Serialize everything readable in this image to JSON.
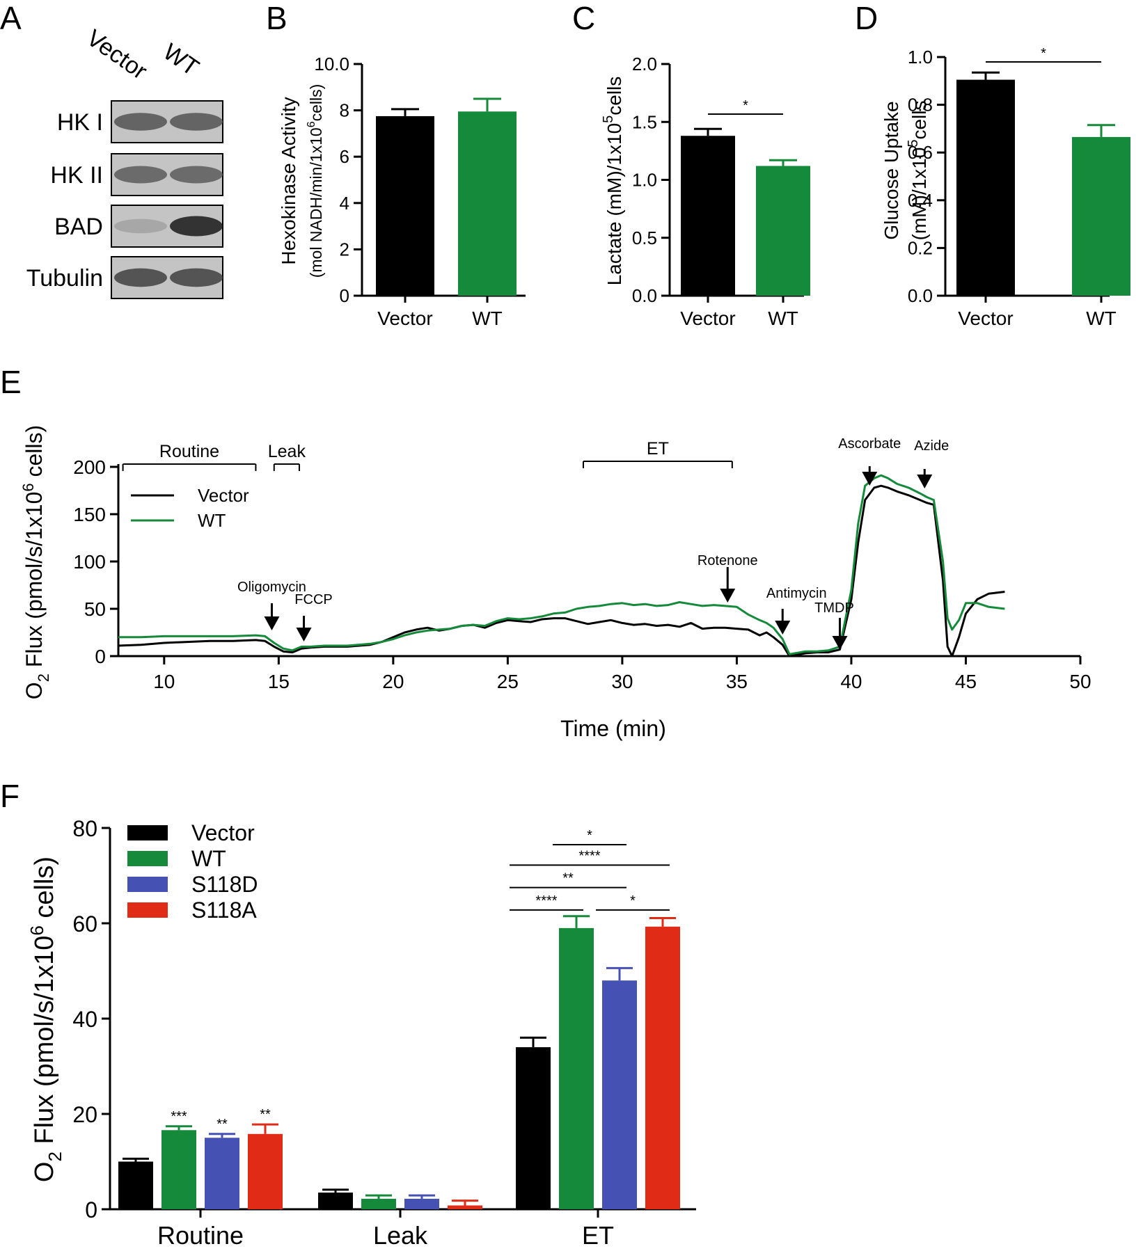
{
  "colors": {
    "vector": "#000000",
    "wt": "#148a3a",
    "s118d": "#4651b4",
    "s118a": "#e02b17"
  },
  "panelA": {
    "letter": "A",
    "lanes": [
      "Vector",
      "WT"
    ],
    "bands": [
      {
        "label": "HK I",
        "intensity": [
          0.62,
          0.62
        ]
      },
      {
        "label": "HK II",
        "intensity": [
          0.58,
          0.58
        ]
      },
      {
        "label": "BAD",
        "intensity": [
          0.22,
          0.92
        ]
      },
      {
        "label": "Tubulin",
        "intensity": [
          0.72,
          0.72
        ]
      }
    ]
  },
  "panelB": {
    "letter": "B",
    "chart_data": {
      "type": "bar",
      "categories": [
        "Vector",
        "WT"
      ],
      "values": [
        7.75,
        7.95
      ],
      "errors": [
        0.3,
        0.55
      ],
      "ylim": [
        0,
        10
      ],
      "yticks": [
        "0",
        "2",
        "4",
        "6",
        "8",
        "10.0"
      ],
      "ylabel_line1": "Hexokinase Activity",
      "ylabel_line2": "(mol NADH/min/1x10",
      "ylabel_sup": "6",
      "ylabel_tail": "cells)",
      "significance": []
    }
  },
  "panelC": {
    "letter": "C",
    "chart_data": {
      "type": "bar",
      "categories": [
        "Vector",
        "WT"
      ],
      "values": [
        1.38,
        1.12
      ],
      "errors": [
        0.06,
        0.05
      ],
      "ylim": [
        0,
        2
      ],
      "yticks": [
        "0.0",
        "0.5",
        "1.0",
        "1.5",
        "2.0"
      ],
      "ylabel": "Lactate (mM)/1x10",
      "ylabel_sup": "5",
      "ylabel_tail": "cells",
      "significance": [
        {
          "from": 0,
          "to": 1,
          "label": "*"
        }
      ]
    }
  },
  "panelD": {
    "letter": "D",
    "chart_data": {
      "type": "bar",
      "categories": [
        "Vector",
        "WT"
      ],
      "values": [
        0.905,
        0.665
      ],
      "errors": [
        0.03,
        0.05
      ],
      "ylim": [
        0,
        1
      ],
      "yticks": [
        "0.0",
        "0.2",
        "0.4",
        "0.6",
        "0.8",
        "1.0"
      ],
      "ylabel_line1": "Glucose Uptake",
      "ylabel_line2": "(mM)/1x10",
      "ylabel_sup": "5",
      "ylabel_tail": "cells",
      "significance": [
        {
          "from": 0,
          "to": 1,
          "label": "*"
        }
      ]
    }
  },
  "panelE": {
    "letter": "E",
    "chart_data": {
      "type": "line",
      "title": "",
      "xlabel": "Time (min)",
      "ylabel_pre": "O",
      "ylabel_sub": "2",
      "ylabel_mid": " Flux (pmol/s/1x10",
      "ylabel_sup": "6",
      "ylabel_tail": " cells)",
      "xlim": [
        8,
        50
      ],
      "ylim": [
        0,
        200
      ],
      "xticks": [
        10,
        15,
        20,
        25,
        30,
        35,
        40,
        45,
        50
      ],
      "yticks": [
        0,
        50,
        100,
        150,
        200
      ],
      "legend": [
        "Vector",
        "WT"
      ],
      "series": [
        {
          "name": "Vector",
          "x": [
            8,
            9,
            10,
            11,
            12,
            13,
            14,
            14.4,
            14.8,
            15.2,
            15.6,
            16,
            16.4,
            17,
            18,
            19,
            19.5,
            20,
            20.5,
            21,
            21.5,
            22,
            22.5,
            23,
            23.5,
            24,
            24.5,
            25,
            25.5,
            26,
            26.5,
            27,
            27.5,
            28,
            28.5,
            29,
            29.5,
            30,
            30.5,
            31,
            31.5,
            32,
            32.5,
            33,
            33.5,
            34,
            34.5,
            35,
            35.5,
            36,
            36.3,
            36.6,
            37,
            37.3,
            38,
            38.5,
            39,
            39.5,
            40,
            40.3,
            40.6,
            41,
            41.3,
            41.6,
            42,
            42.5,
            43,
            43.3,
            43.6,
            44,
            44.2,
            44.4,
            44.7,
            45,
            45.5,
            46,
            46.7
          ],
          "y": [
            11,
            12,
            14,
            15,
            16,
            16,
            17,
            16,
            10,
            5,
            4,
            8,
            9,
            10,
            10,
            12,
            15,
            20,
            25,
            28,
            30,
            27,
            29,
            32,
            33,
            30,
            35,
            38,
            37,
            36,
            39,
            40,
            40,
            37,
            34,
            36,
            38,
            35,
            33,
            34,
            32,
            33,
            31,
            35,
            29,
            30,
            30,
            29,
            28,
            22,
            25,
            20,
            12,
            0,
            3,
            4,
            4,
            7,
            60,
            120,
            165,
            178,
            180,
            178,
            174,
            170,
            165,
            162,
            160,
            80,
            10,
            0,
            20,
            45,
            60,
            66,
            68
          ]
        },
        {
          "name": "WT",
          "x": [
            8,
            9,
            10,
            11,
            12,
            13,
            14,
            14.4,
            14.8,
            15.2,
            15.6,
            16,
            16.4,
            17,
            18,
            19,
            19.5,
            20,
            20.5,
            21,
            21.5,
            22,
            22.5,
            23,
            23.5,
            24,
            24.5,
            25,
            25.5,
            26,
            26.5,
            27,
            27.5,
            28,
            28.5,
            29,
            29.5,
            30,
            30.5,
            31,
            31.5,
            32,
            32.5,
            33,
            33.5,
            34,
            34.5,
            35,
            35.5,
            36,
            36.3,
            36.6,
            37,
            37.3,
            38,
            38.5,
            39,
            39.5,
            40,
            40.3,
            40.6,
            41,
            41.3,
            41.6,
            42,
            42.5,
            43,
            43.3,
            43.6,
            44,
            44.2,
            44.4,
            44.7,
            45,
            45.5,
            46,
            46.7
          ],
          "y": [
            20,
            20,
            21,
            21,
            21,
            21,
            22,
            21,
            14,
            8,
            6,
            10,
            10,
            11,
            11,
            13,
            15,
            18,
            22,
            25,
            27,
            28,
            29,
            32,
            33,
            32,
            37,
            40,
            39,
            40,
            42,
            45,
            46,
            50,
            52,
            53,
            55,
            56,
            54,
            55,
            53,
            54,
            57,
            55,
            53,
            54,
            53,
            52,
            44,
            38,
            35,
            30,
            18,
            2,
            5,
            5,
            6,
            10,
            70,
            140,
            180,
            188,
            191,
            188,
            182,
            178,
            172,
            168,
            165,
            100,
            40,
            28,
            38,
            56,
            56,
            52,
            50
          ]
        }
      ],
      "brackets": [
        {
          "label": "Routine",
          "from": 8.2,
          "to": 14.0
        },
        {
          "label": "Leak",
          "from": 14.8,
          "to": 15.9
        },
        {
          "label": "ET",
          "from": 28.3,
          "to": 34.8
        }
      ],
      "injections": [
        {
          "label": "Oligomycin",
          "x": 14.7
        },
        {
          "label": "FCCP",
          "x": 16.1
        },
        {
          "label": "Rotenone",
          "x": 34.6
        },
        {
          "label": "Antimycin",
          "x": 37.0
        },
        {
          "label": "TMDP",
          "x": 39.5
        },
        {
          "label": "Ascorbate",
          "x": 40.8
        },
        {
          "label": "Azide",
          "x": 43.2
        }
      ]
    }
  },
  "panelF": {
    "letter": "F",
    "chart_data": {
      "type": "bar",
      "categories": [
        "Routine",
        "Leak",
        "ET"
      ],
      "ylim": [
        0,
        80
      ],
      "yticks": [
        0,
        20,
        40,
        60,
        80
      ],
      "ylabel_pre": "O",
      "ylabel_sub": "2",
      "ylabel_mid": " Flux (pmol/s/1x10",
      "ylabel_sup": "6",
      "ylabel_tail": " cells)",
      "series": [
        {
          "name": "Vector",
          "values": [
            10.0,
            3.5,
            34.0
          ],
          "errors": [
            0.6,
            0.6,
            2.0
          ]
        },
        {
          "name": "WT",
          "values": [
            16.6,
            2.2,
            59.0
          ],
          "errors": [
            0.8,
            0.7,
            2.5
          ]
        },
        {
          "name": "S118D",
          "values": [
            15.0,
            2.2,
            48.0
          ],
          "errors": [
            0.8,
            0.7,
            2.6
          ]
        },
        {
          "name": "S118A",
          "values": [
            15.8,
            0.8,
            59.3
          ],
          "errors": [
            2.0,
            1.0,
            1.8
          ]
        }
      ],
      "bar_stars": [
        {
          "group": 0,
          "series": 1,
          "label": "***"
        },
        {
          "group": 0,
          "series": 2,
          "label": "**"
        },
        {
          "group": 0,
          "series": 3,
          "label": "**"
        }
      ],
      "comparisons": [
        {
          "from": 1,
          "to": 2,
          "y": 76.5,
          "label": "*"
        },
        {
          "from": 0,
          "to": 3,
          "y": 72.2,
          "label": "****"
        },
        {
          "from": 0,
          "to": 2,
          "y": 67.5,
          "label": "**"
        },
        {
          "from": 0,
          "to": 1,
          "y": 62.8,
          "label": "****"
        },
        {
          "from": 2,
          "to": 3,
          "y": 62.8,
          "label": "*"
        }
      ]
    }
  }
}
